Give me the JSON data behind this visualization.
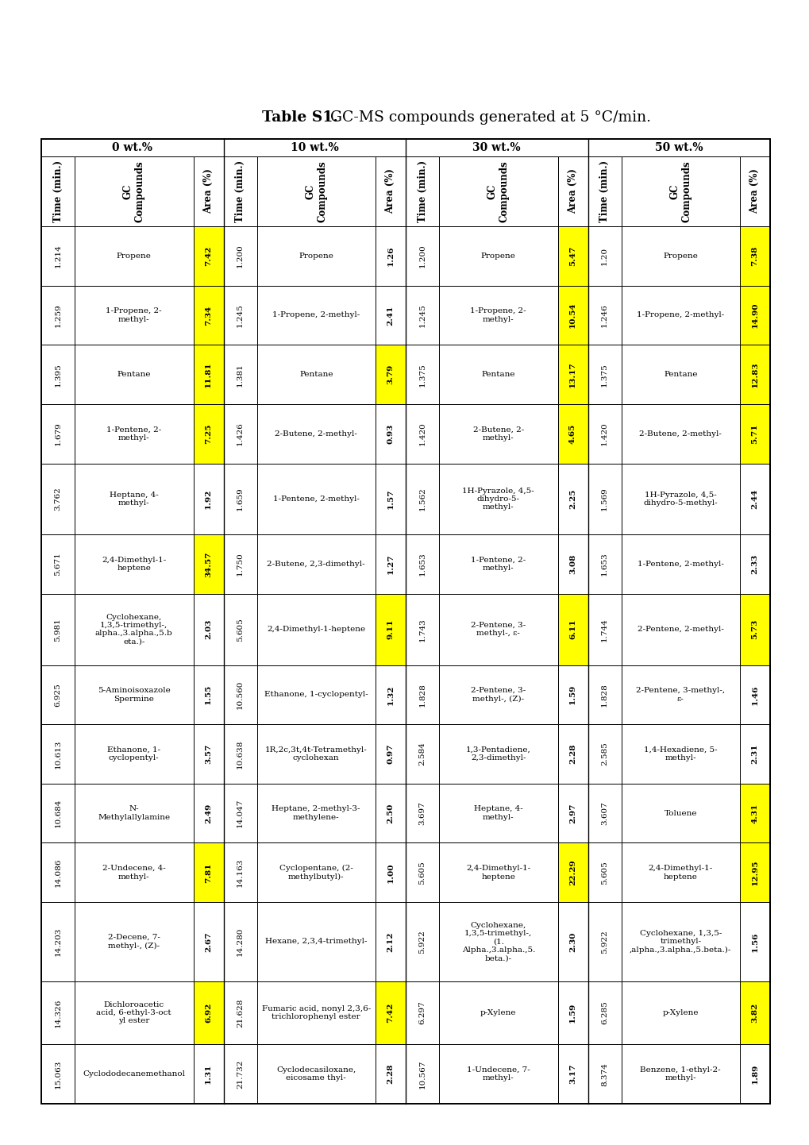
{
  "title_bold": "Table S1.",
  "title_normal": " GC-MS compounds generated at 5 °C/min.",
  "group_headers": [
    "0 wt.%",
    "10 wt.%",
    "30 wt.%",
    "50 wt.%"
  ],
  "rows": [
    {
      "t0": "1.214",
      "c0": "Propene",
      "a0": "7.42",
      "yc0": true,
      "t1": "1.200",
      "c1": "Propene",
      "a1": "1.26",
      "yc1": false,
      "t2": "1.200",
      "c2": "Propene",
      "a2": "5.47",
      "yc2": true,
      "t3": "1.20",
      "c3": "Propene",
      "a3": "7.38",
      "yc3": true
    },
    {
      "t0": "1.259",
      "c0": "1-Propene, 2-\nmethyl-",
      "a0": "7.34",
      "yc0": true,
      "t1": "1.245",
      "c1": "1-Propene, 2-methyl-",
      "a1": "2.41",
      "yc1": false,
      "t2": "1.245",
      "c2": "1-Propene, 2-\nmethyl-",
      "a2": "10.54",
      "yc2": true,
      "t3": "1.246",
      "c3": "1-Propene, 2-methyl-",
      "a3": "14.90",
      "yc3": true
    },
    {
      "t0": "1.395",
      "c0": "Pentane",
      "a0": "11.81",
      "yc0": true,
      "t1": "1.381",
      "c1": "Pentane",
      "a1": "3.79",
      "yc1": true,
      "t2": "1.375",
      "c2": "Pentane",
      "a2": "13.17",
      "yc2": true,
      "t3": "1.375",
      "c3": "Pentane",
      "a3": "12.83",
      "yc3": true
    },
    {
      "t0": "1.679",
      "c0": "1-Pentene, 2-\nmethyl-",
      "a0": "7.25",
      "yc0": true,
      "t1": "1.426",
      "c1": "2-Butene, 2-methyl-",
      "a1": "0.93",
      "yc1": false,
      "t2": "1.420",
      "c2": "2-Butene, 2-\nmethyl-",
      "a2": "4.65",
      "yc2": true,
      "t3": "1.420",
      "c3": "2-Butene, 2-methyl-",
      "a3": "5.71",
      "yc3": true
    },
    {
      "t0": "3.762",
      "c0": "Heptane, 4-\nmethyl-",
      "a0": "1.92",
      "yc0": false,
      "t1": "1.659",
      "c1": "1-Pentene, 2-methyl-",
      "a1": "1.57",
      "yc1": false,
      "t2": "1.562",
      "c2": "1H-Pyrazole, 4,5-\ndihydro-5-\nmethyl-",
      "a2": "2.25",
      "yc2": false,
      "t3": "1.569",
      "c3": "1H-Pyrazole, 4,5-\ndihydro-5-methyl-",
      "a3": "2.44",
      "yc3": false
    },
    {
      "t0": "5.671",
      "c0": "2,4-Dimethyl-1-\nheptene",
      "a0": "34.57",
      "yc0": true,
      "t1": "1.750",
      "c1": "2-Butene, 2,3-dimethyl-",
      "a1": "1.27",
      "yc1": false,
      "t2": "1.653",
      "c2": "1-Pentene, 2-\nmethyl-",
      "a2": "3.08",
      "yc2": false,
      "t3": "1.653",
      "c3": "1-Pentene, 2-methyl-",
      "a3": "2.33",
      "yc3": false
    },
    {
      "t0": "5.981",
      "c0": "Cyclohexane,\n1,3,5-trimethyl-,\nalpha.,3.alpha.,5.b\neta.)-",
      "a0": "2.03",
      "yc0": false,
      "t1": "5.605",
      "c1": "2,4-Dimethyl-1-heptene",
      "a1": "9.11",
      "yc1": true,
      "t2": "1.743",
      "c2": "2-Pentene, 3-\nmethyl-, ε-",
      "a2": "6.11",
      "yc2": true,
      "t3": "1.744",
      "c3": "2-Pentene, 2-methyl-",
      "a3": "5.73",
      "yc3": true
    },
    {
      "t0": "6.925",
      "c0": "5-Aminoisoxazole\nSpermine",
      "a0": "1.55",
      "yc0": false,
      "t1": "10.560",
      "c1": "Ethanone, 1-cyclopentyl-",
      "a1": "1.32",
      "yc1": false,
      "t2": "1.828",
      "c2": "2-Pentene, 3-\nmethyl-, (Z)-",
      "a2": "1.59",
      "yc2": false,
      "t3": "1.828",
      "c3": "2-Pentene, 3-methyl-,\nε-",
      "a3": "1.46",
      "yc3": false
    },
    {
      "t0": "10.613",
      "c0": "Ethanone, 1-\ncyclopentyl-",
      "a0": "3.57",
      "yc0": false,
      "t1": "10.638",
      "c1": "1R,2c,3t,4t-Tetramethyl-\ncyclohexan",
      "a1": "0.97",
      "yc1": false,
      "t2": "2.584",
      "c2": "1,3-Pentadiene,\n2,3-dimethyl-",
      "a2": "2.28",
      "yc2": false,
      "t3": "2.585",
      "c3": "1,4-Hexadiene, 5-\nmethyl-",
      "a3": "2.31",
      "yc3": false
    },
    {
      "t0": "10.684",
      "c0": "N-\nMethylallylamine",
      "a0": "2.49",
      "yc0": false,
      "t1": "14.047",
      "c1": "Heptane, 2-methyl-3-\nmethylene-",
      "a1": "2.50",
      "yc1": false,
      "t2": "3.697",
      "c2": "Heptane, 4-\nmethyl-",
      "a2": "2.97",
      "yc2": false,
      "t3": "3.607",
      "c3": "Toluene",
      "a3": "4.31",
      "yc3": true
    },
    {
      "t0": "14.086",
      "c0": "2-Undecene, 4-\nmethyl-",
      "a0": "7.81",
      "yc0": true,
      "t1": "14.163",
      "c1": "Cyclopentane, (2-\nmethylbutyl)-",
      "a1": "1.00",
      "yc1": false,
      "t2": "5.605",
      "c2": "2,4-Dimethyl-1-\nheptene",
      "a2": "22.29",
      "yc2": true,
      "t3": "5.605",
      "c3": "2,4-Dimethyl-1-\nheptene",
      "a3": "12.95",
      "yc3": true
    },
    {
      "t0": "14.203",
      "c0": "2-Decene, 7-\nmethyl-, (Z)-",
      "a0": "2.67",
      "yc0": false,
      "t1": "14.280",
      "c1": "Hexane, 2,3,4-trimethyl-",
      "a1": "2.12",
      "yc1": false,
      "t2": "5.922",
      "c2": "Cyclohexane,\n1,3,5-trimethyl-,\n(1.\nAlpha.,3.alpha.,5.\nbeta.)-",
      "a2": "2.30",
      "yc2": false,
      "t3": "5.922",
      "c3": "Cyclohexane, 1,3,5-\ntrimethyl-\n,alpha.,3.alpha.,5.beta.)-",
      "a3": "1.56",
      "yc3": false
    },
    {
      "t0": "14.326",
      "c0": "Dichloroacetic\nacid, 6-ethyl-3-oct\nyl ester",
      "a0": "6.92",
      "yc0": true,
      "t1": "21.628",
      "c1": "Fumaric acid, nonyl 2,3,6-\ntrichlorophenyl ester",
      "a1": "7.42",
      "yc1": true,
      "t2": "6.297",
      "c2": "p-Xylene",
      "a2": "1.59",
      "yc2": false,
      "t3": "6.285",
      "c3": "p-Xylene",
      "a3": "3.82",
      "yc3": true
    },
    {
      "t0": "15.063",
      "c0": "Cyclododecanemethanol",
      "a0": "1.31",
      "yc0": false,
      "t1": "21.732",
      "c1": "Cyclodecasiloxane,\neicosame thyl-",
      "a1": "2.28",
      "yc1": false,
      "t2": "10.567",
      "c2": "1-Undecene, 7-\nmethyl-",
      "a2": "3.17",
      "yc2": false,
      "t3": "8.374",
      "c3": "Benzene, 1-ethyl-2-\nmethyl-",
      "a3": "1.89",
      "yc3": false
    }
  ],
  "yellow": "#FFFF00",
  "fig_width": 10.2,
  "fig_height": 14.42,
  "dpi": 100
}
